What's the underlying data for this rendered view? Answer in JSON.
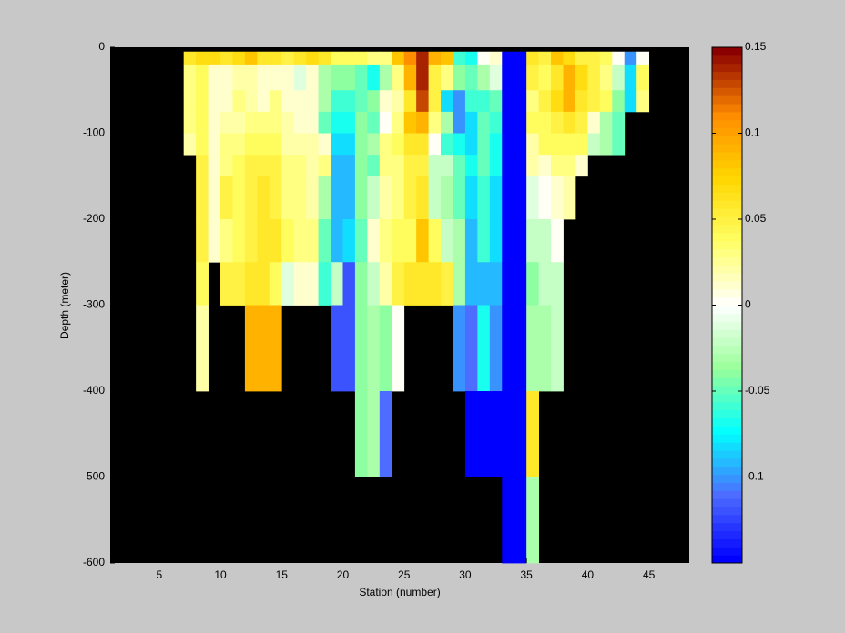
{
  "chart_data": {
    "type": "heatmap",
    "xlabel": "Station (number)",
    "ylabel": "Depth (meter)",
    "xlim": [
      1,
      48.3
    ],
    "xticks": [
      5,
      10,
      15,
      20,
      25,
      30,
      35,
      40,
      45
    ],
    "ylim": [
      -600,
      0
    ],
    "yticks": [
      0,
      -100,
      -200,
      -300,
      -400,
      -500,
      -600
    ],
    "zlim": [
      -0.15,
      0.15
    ],
    "zticks": [
      0.15,
      0.1,
      0.05,
      0,
      -0.05,
      -0.1
    ],
    "background": "#000000",
    "colormap": [
      "#0000ff",
      "#4d6bff",
      "#00ffff",
      "#99ff99",
      "#ffffff",
      "#ffff66",
      "#ffd700",
      "#ff8c00",
      "#8b0000"
    ],
    "depth_edges": [
      -5,
      -20,
      -50,
      -75,
      -100,
      -125,
      -150,
      -200,
      -250,
      -300,
      -400,
      -500,
      -600
    ],
    "columns": [
      {
        "station": 7,
        "values": [
          0.06,
          0.03,
          0.03,
          0.03,
          0.02
        ]
      },
      {
        "station": 8,
        "values": [
          0.07,
          0.04,
          0.04,
          0.04,
          0.04,
          0.05,
          0.05,
          0.05,
          0.04,
          0.02
        ]
      },
      {
        "station": 9,
        "values": [
          0.07,
          0.01,
          0.01,
          0.01,
          0.01,
          0.01,
          0.01,
          0.01
        ]
      },
      {
        "station": 10,
        "values": [
          0.06,
          0.01,
          0.01,
          0.02,
          0.03,
          0.03,
          0.05,
          0.03,
          0.05
        ]
      },
      {
        "station": 11,
        "values": [
          0.07,
          0.02,
          0.03,
          0.02,
          0.03,
          0.04,
          0.04,
          0.04,
          0.05
        ]
      },
      {
        "station": 12,
        "values": [
          0.08,
          0.02,
          0.02,
          0.03,
          0.04,
          0.05,
          0.05,
          0.05,
          0.06,
          0.09
        ]
      },
      {
        "station": 13,
        "values": [
          0.06,
          0.01,
          0.01,
          0.03,
          0.04,
          0.05,
          0.06,
          0.06,
          0.06,
          0.09
        ]
      },
      {
        "station": 14,
        "values": [
          0.06,
          0.01,
          0.03,
          0.03,
          0.04,
          0.05,
          0.05,
          0.06,
          0.04,
          0.09
        ]
      },
      {
        "station": 15,
        "values": [
          0.05,
          0.01,
          0.01,
          0.02,
          0.02,
          0.03,
          0.03,
          0.04,
          -0.01
        ]
      },
      {
        "station": 16,
        "values": [
          0.06,
          -0.01,
          0.01,
          0.01,
          0.02,
          0.03,
          0.03,
          0.03,
          0.01
        ]
      },
      {
        "station": 17,
        "values": [
          0.07,
          0.01,
          0.01,
          0.01,
          0.02,
          0.02,
          0.02,
          0.03,
          0.01
        ]
      },
      {
        "station": 18,
        "values": [
          0.06,
          -0.03,
          -0.03,
          -0.05,
          0.01,
          0.03,
          -0.03,
          -0.05,
          -0.06
        ]
      },
      {
        "station": 19,
        "values": [
          0.04,
          -0.04,
          -0.06,
          -0.07,
          -0.08,
          -0.09,
          -0.09,
          -0.09,
          -0.02,
          -0.12
        ]
      },
      {
        "station": 20,
        "values": [
          0.04,
          -0.04,
          -0.06,
          -0.07,
          -0.08,
          -0.09,
          -0.09,
          -0.08,
          -0.12,
          -0.12
        ]
      },
      {
        "station": 21,
        "values": [
          0.04,
          -0.05,
          -0.05,
          -0.04,
          -0.04,
          -0.04,
          -0.04,
          -0.05,
          -0.04,
          -0.04,
          -0.04
        ]
      },
      {
        "station": 22,
        "values": [
          0.03,
          -0.07,
          -0.04,
          -0.05,
          -0.03,
          -0.05,
          -0.02,
          0.01,
          -0.02,
          -0.03,
          -0.03
        ]
      },
      {
        "station": 23,
        "values": [
          0.03,
          -0.03,
          0.01,
          0.0,
          0.03,
          0.03,
          0.02,
          0.03,
          0.02,
          -0.04,
          -0.11
        ]
      },
      {
        "station": 24,
        "values": [
          0.08,
          0.03,
          0.02,
          0.03,
          0.04,
          0.03,
          0.03,
          0.04,
          0.05,
          0.0
        ]
      },
      {
        "station": 25,
        "values": [
          0.11,
          0.09,
          0.06,
          0.08,
          0.06,
          0.05,
          0.05,
          0.04,
          0.06
        ]
      },
      {
        "station": 26,
        "values": [
          0.14,
          0.14,
          0.13,
          0.09,
          0.06,
          0.05,
          0.06,
          0.08,
          0.06
        ]
      },
      {
        "station": 27,
        "values": [
          0.09,
          0.05,
          0.05,
          0.03,
          0.0,
          -0.02,
          -0.02,
          0.04,
          0.06
        ]
      },
      {
        "station": 28,
        "values": [
          0.08,
          0.03,
          -0.08,
          -0.03,
          -0.06,
          -0.02,
          -0.03,
          -0.02,
          0.05
        ]
      },
      {
        "station": 29,
        "values": [
          -0.06,
          -0.04,
          -0.1,
          -0.1,
          -0.07,
          -0.05,
          -0.05,
          -0.03,
          -0.03,
          -0.1
        ]
      },
      {
        "station": 30,
        "values": [
          -0.07,
          -0.05,
          -0.06,
          -0.08,
          -0.08,
          -0.07,
          -0.08,
          -0.09,
          -0.09,
          -0.11,
          -0.15
        ]
      },
      {
        "station": 31,
        "values": [
          0.0,
          -0.03,
          -0.06,
          -0.05,
          -0.05,
          -0.05,
          -0.06,
          -0.06,
          -0.09,
          -0.07,
          -0.15
        ]
      },
      {
        "station": 32,
        "values": [
          0.01,
          -0.01,
          -0.05,
          -0.06,
          -0.07,
          -0.07,
          -0.08,
          -0.08,
          -0.09,
          -0.1,
          -0.15
        ]
      },
      {
        "station": 33,
        "values": [
          -0.15,
          -0.15,
          -0.15,
          -0.15,
          -0.15,
          -0.15,
          -0.15,
          -0.15,
          -0.15,
          -0.15,
          -0.15,
          -0.15
        ]
      },
      {
        "station": 34,
        "values": [
          -0.15,
          -0.15,
          -0.15,
          -0.15,
          -0.15,
          -0.15,
          -0.15,
          -0.15,
          -0.15,
          -0.15,
          -0.15,
          -0.15
        ]
      },
      {
        "station": 35,
        "values": [
          0.06,
          0.05,
          0.03,
          0.04,
          0.02,
          0.02,
          -0.01,
          -0.02,
          -0.04,
          -0.03,
          0.06,
          -0.03
        ]
      },
      {
        "station": 36,
        "values": [
          0.05,
          0.04,
          0.05,
          0.04,
          0.04,
          0.01,
          0.0,
          -0.02,
          -0.02,
          -0.03
        ]
      },
      {
        "station": 37,
        "values": [
          0.08,
          0.06,
          0.07,
          0.05,
          0.04,
          0.03,
          0.01,
          0.0,
          -0.02,
          -0.02
        ]
      },
      {
        "station": 38,
        "values": [
          0.07,
          0.09,
          0.09,
          0.06,
          0.04,
          0.03,
          0.02
        ]
      },
      {
        "station": 39,
        "values": [
          0.05,
          0.07,
          0.06,
          0.05,
          0.04,
          0.01
        ]
      },
      {
        "station": 40,
        "values": [
          0.05,
          0.05,
          0.05,
          0.01,
          -0.02
        ]
      },
      {
        "station": 41,
        "values": [
          0.04,
          0.03,
          0.04,
          -0.03,
          -0.03
        ]
      },
      {
        "station": 42,
        "values": [
          0.0,
          -0.02,
          -0.04,
          -0.05,
          -0.05
        ]
      },
      {
        "station": 43,
        "values": [
          -0.1,
          -0.08,
          -0.08
        ]
      },
      {
        "station": 44,
        "values": [
          0.0,
          0.04,
          0.03
        ]
      }
    ]
  }
}
